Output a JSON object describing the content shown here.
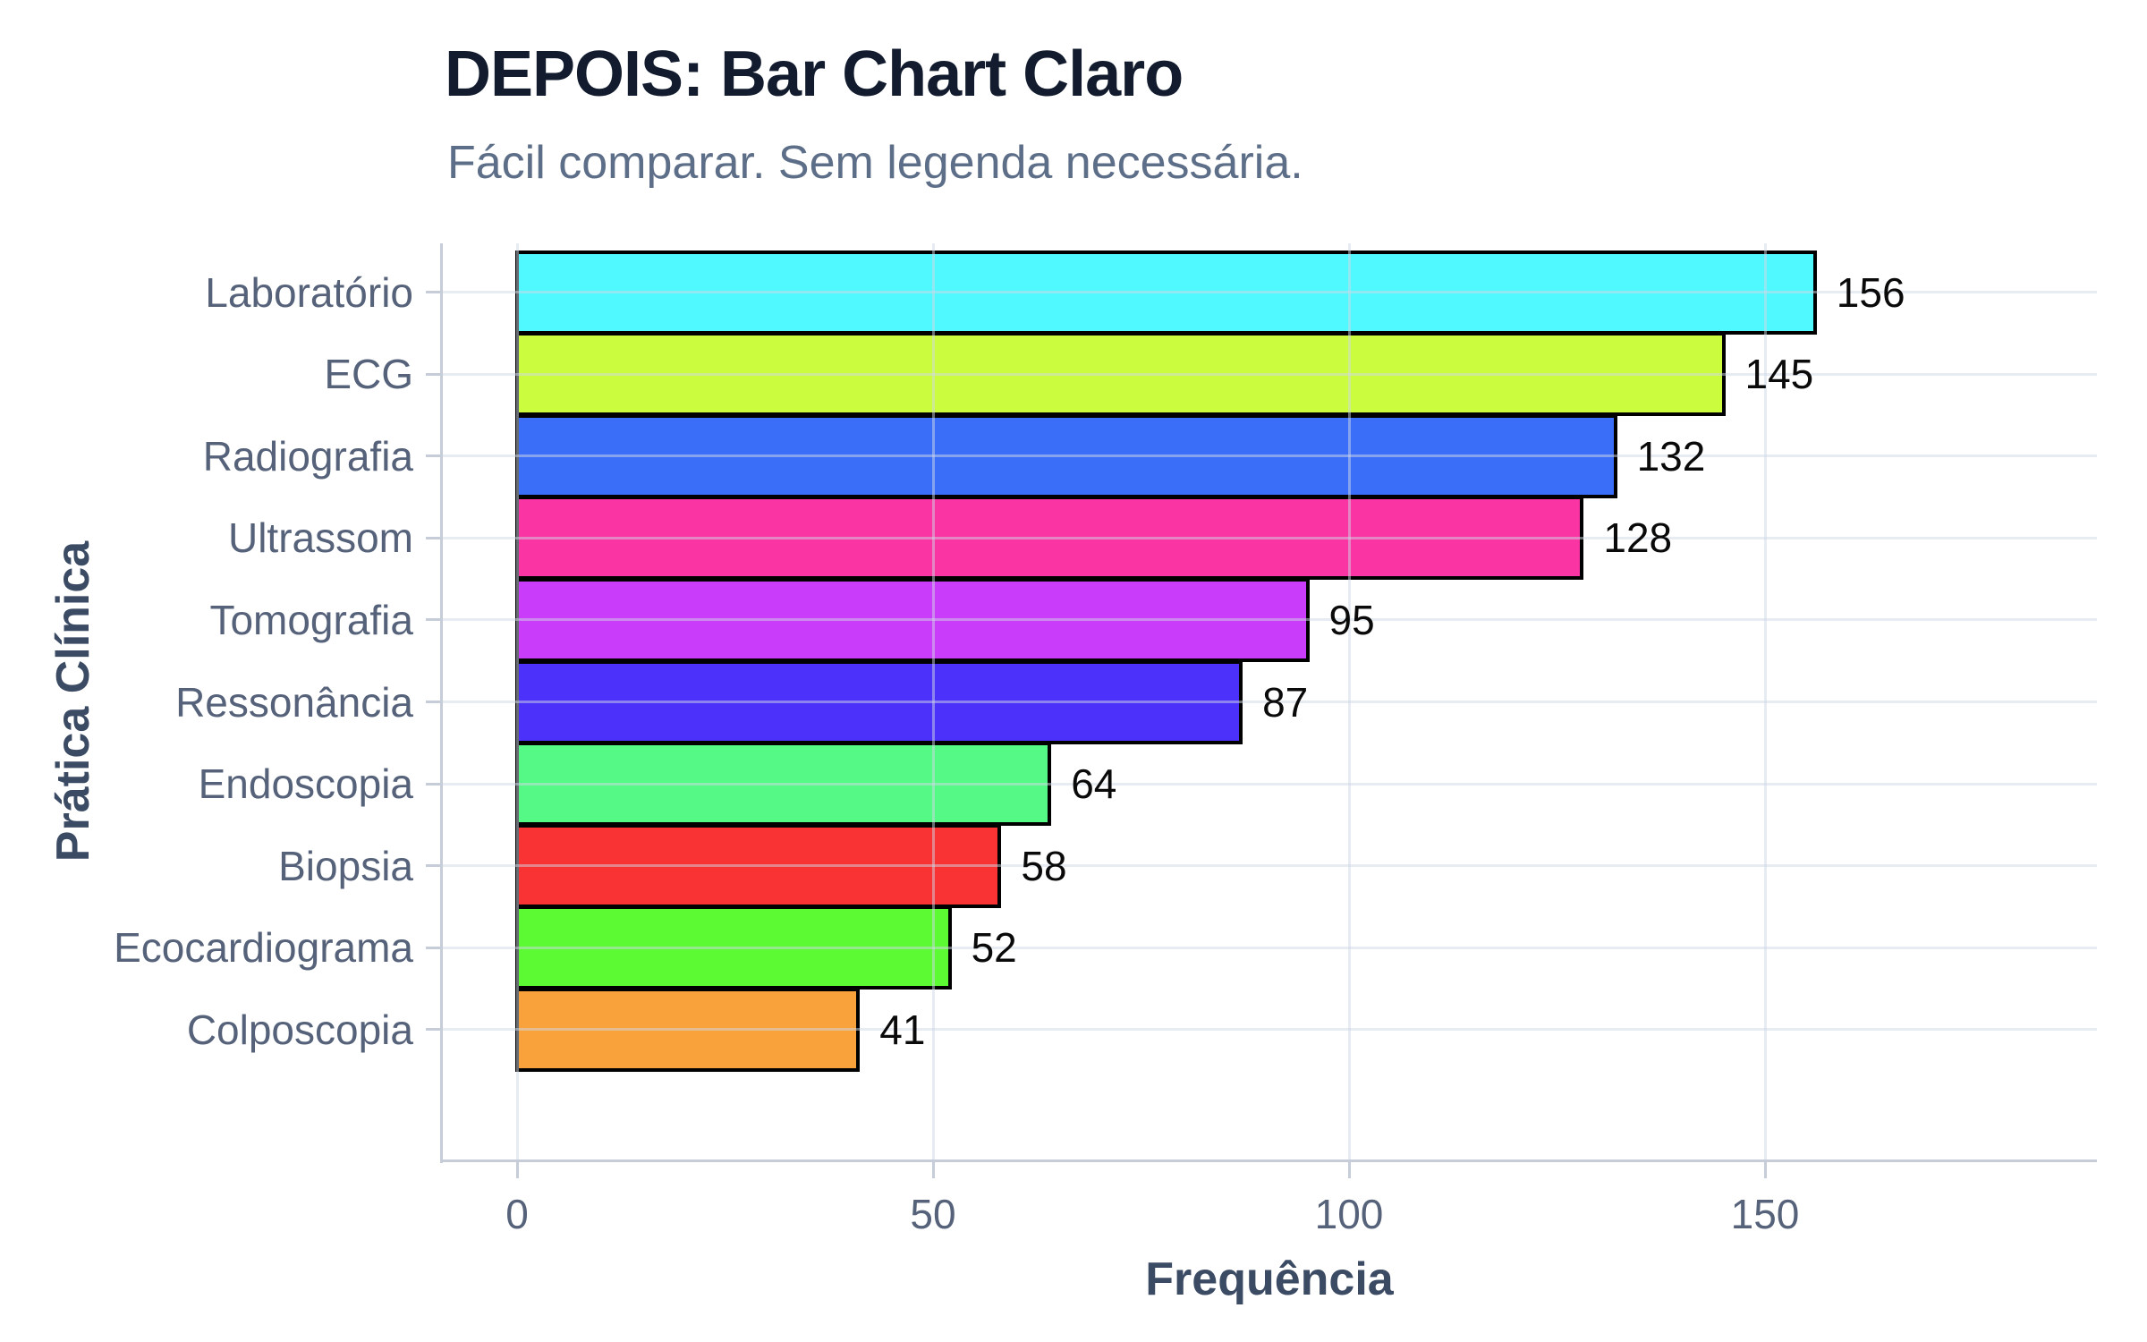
{
  "header": {
    "title": "DEPOIS: Bar Chart Claro",
    "subtitle": "Fácil comparar. Sem legenda necessária."
  },
  "chart_data": {
    "type": "bar",
    "orientation": "horizontal",
    "title": "DEPOIS: Bar Chart Claro",
    "subtitle": "Fácil comparar. Sem legenda necessária.",
    "xlabel": "Frequência",
    "ylabel": "Prática Clínica",
    "categories": [
      "Laboratório",
      "ECG",
      "Radiografia",
      "Ultrassom",
      "Tomografia",
      "Ressonância",
      "Endoscopia",
      "Biopsia",
      "Ecocardiograma",
      "Colposcopia"
    ],
    "values": [
      156,
      145,
      132,
      128,
      95,
      87,
      64,
      58,
      52,
      41
    ],
    "value_labels": [
      "156",
      "145",
      "132",
      "128",
      "95",
      "87",
      "64",
      "58",
      "52",
      "41"
    ],
    "bar_colors": [
      "#4ff9ff",
      "#ccfc3e",
      "#3a6ef8",
      "#fb34a3",
      "#c93cf9",
      "#4c31fb",
      "#55fa86",
      "#f93334",
      "#5bfa33",
      "#f9a23b"
    ],
    "bar_border_color": "#000000",
    "x_ticks": [
      0,
      50,
      100,
      150
    ],
    "x_tick_labels": [
      "0",
      "50",
      "100",
      "150"
    ],
    "xlim": [
      0,
      190
    ],
    "grid": true,
    "legend": "none",
    "value_labels_shown": true
  },
  "colors": {
    "title_text": "#121c2e",
    "subtitle_text": "#5d6e88",
    "axis_title_text": "#3c4b64",
    "tick_label_text": "#55627a",
    "axis_line": "#c7ccd9",
    "gridline": "#edf0f6",
    "background": "#ffffff"
  }
}
